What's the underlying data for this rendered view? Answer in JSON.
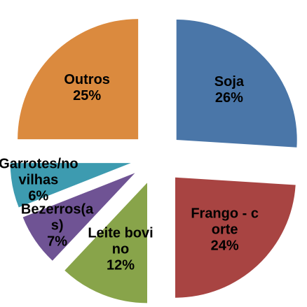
{
  "chart_data": {
    "type": "pie",
    "categories": [
      "Soja",
      "Frango - corte",
      "Leite bovino",
      "Bezerros(as)",
      "Garrotes/novilhas",
      "Outros"
    ],
    "values": [
      26,
      24,
      12,
      7,
      6,
      25
    ],
    "value_labels": [
      "26%",
      "24%",
      "12%",
      "7%",
      "6%",
      "25%"
    ],
    "colors": [
      "#4a76a8",
      "#a84442",
      "#88a44a",
      "#6f5394",
      "#3d9bb0",
      "#db8a3e"
    ]
  }
}
